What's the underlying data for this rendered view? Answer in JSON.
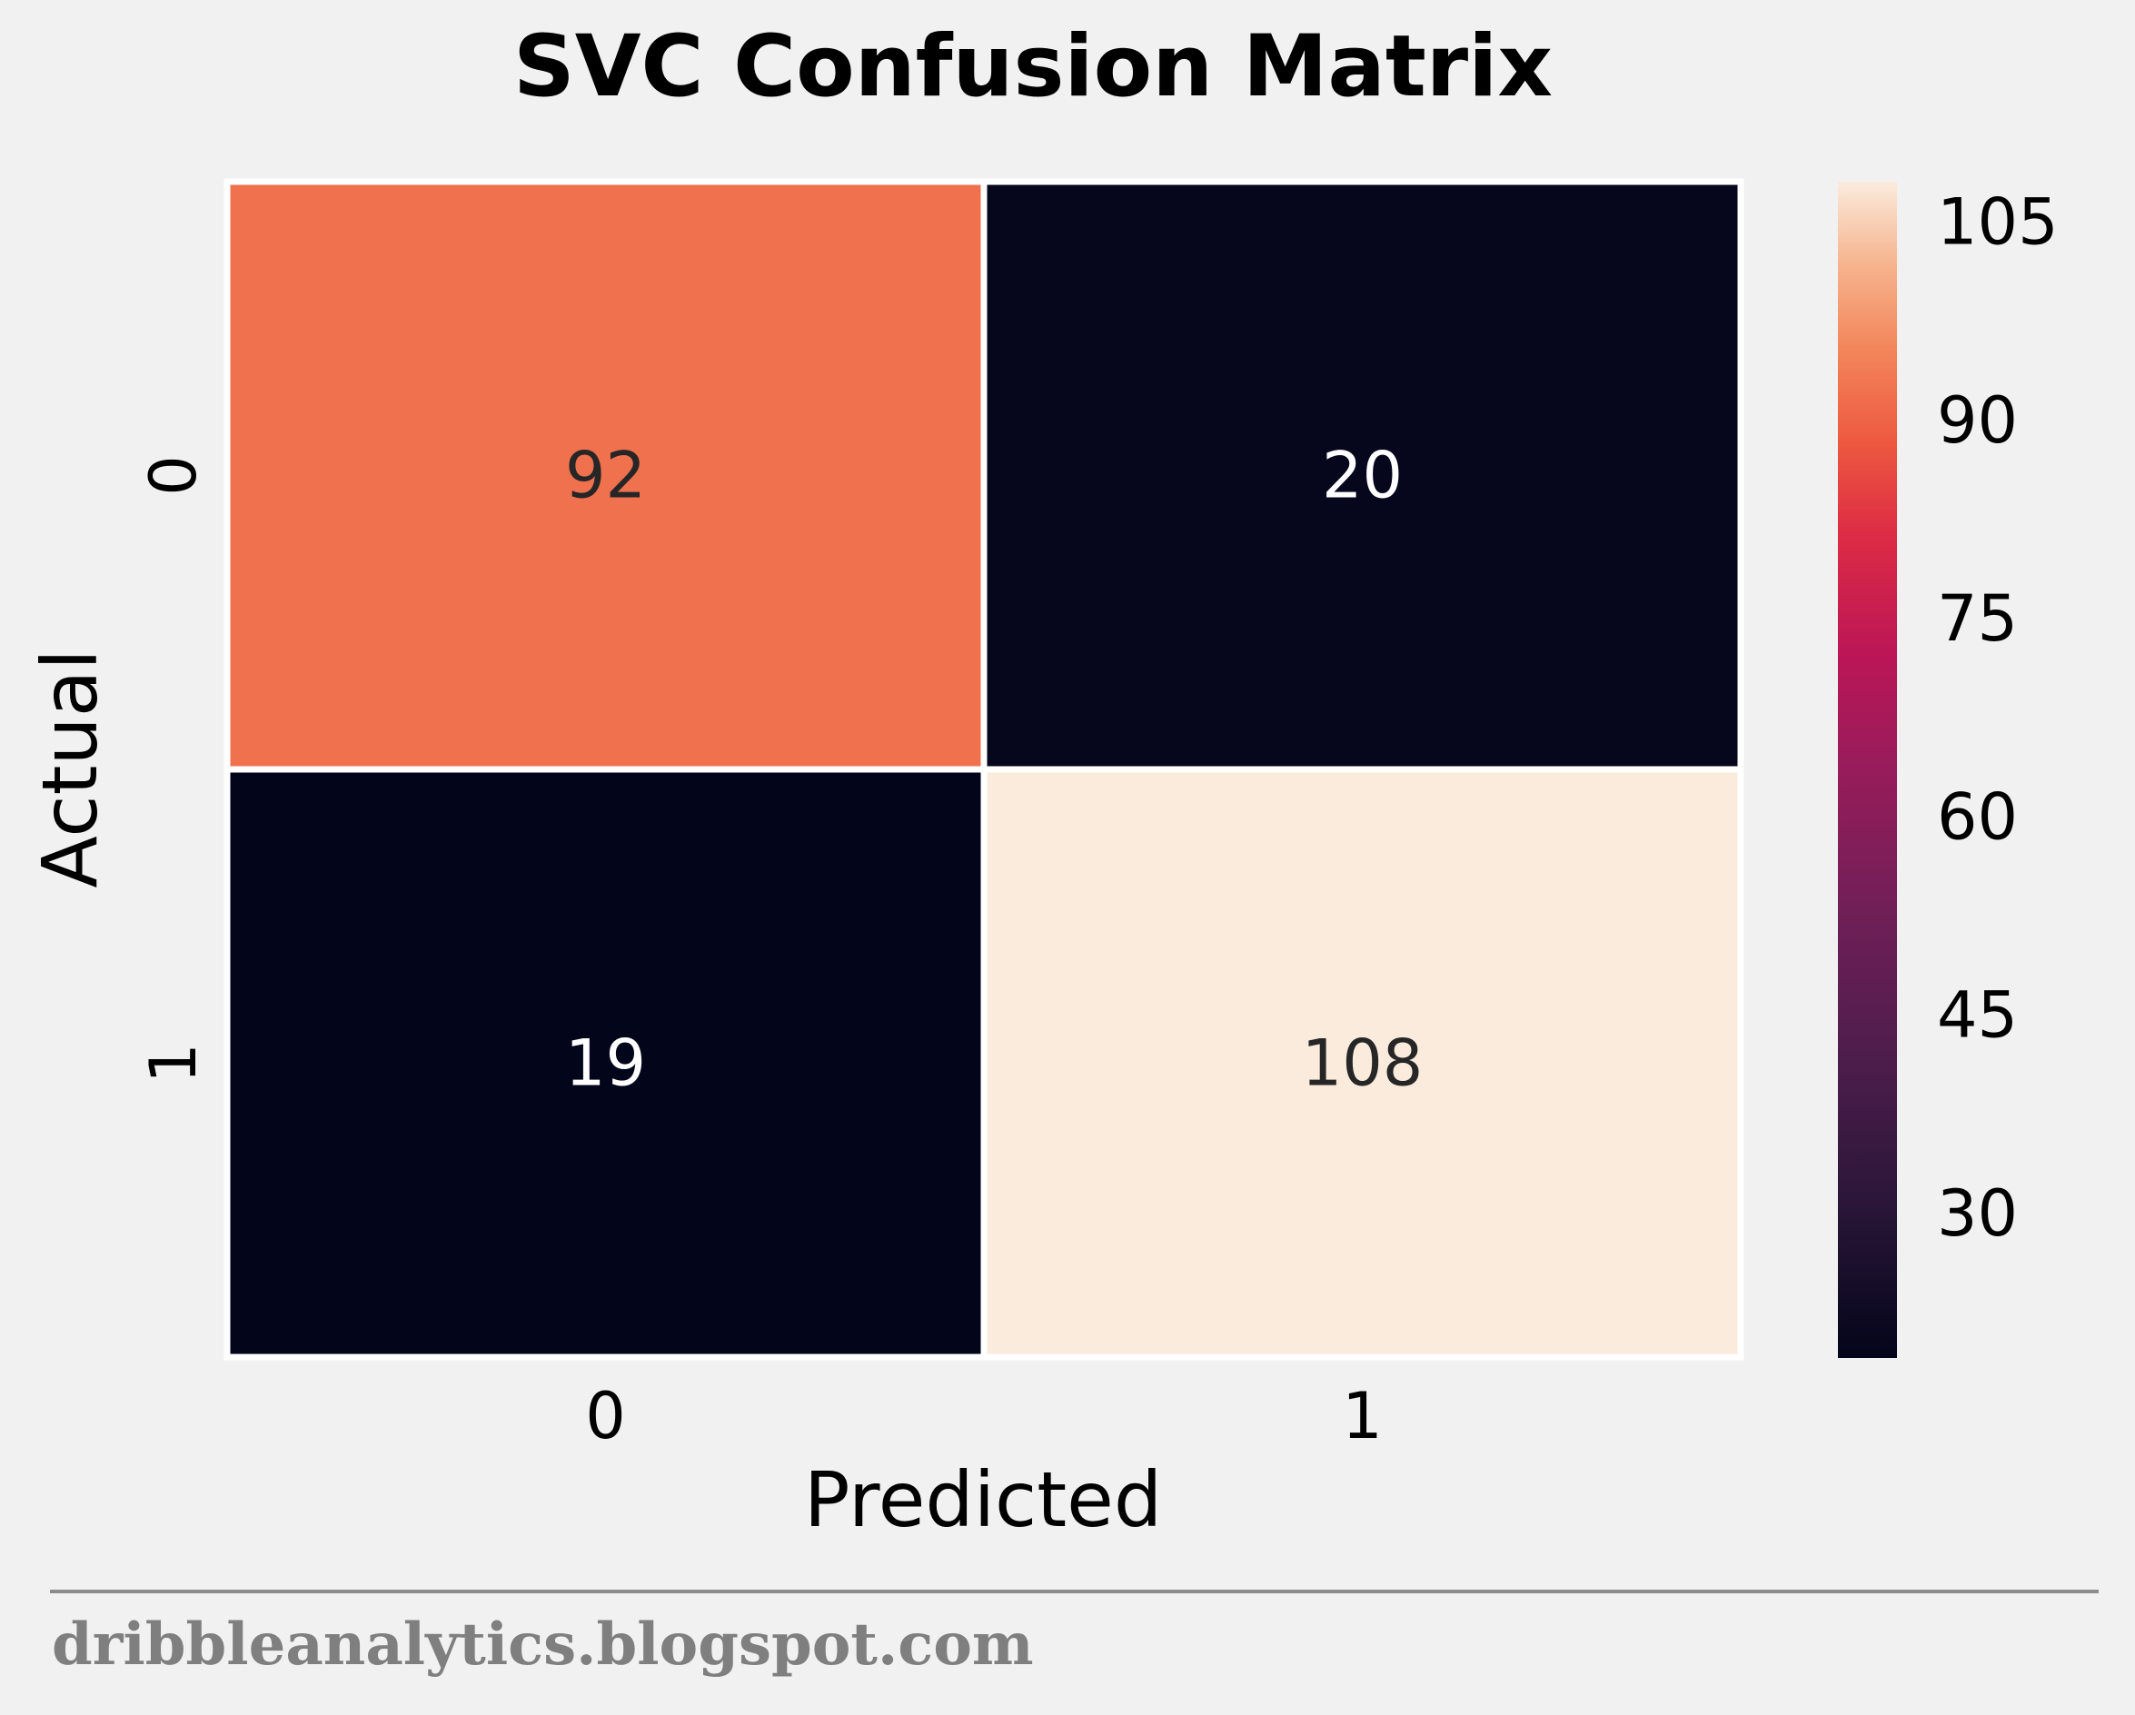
{
  "chart_data": {
    "type": "heatmap",
    "title": "SVC Confusion Matrix",
    "xlabel": "Predicted",
    "ylabel": "Actual",
    "x_categories": [
      "0",
      "1"
    ],
    "y_categories": [
      "0",
      "1"
    ],
    "matrix": [
      [
        92,
        20
      ],
      [
        19,
        108
      ]
    ],
    "colormap": "rocket",
    "colorbar": {
      "range": [
        19,
        108
      ],
      "ticks": [
        30,
        45,
        60,
        75,
        90,
        105
      ]
    },
    "grid": false
  },
  "footer": {
    "text": "dribbleanalytics.blogspot.com"
  },
  "colors": {
    "background": "#f1f1f1",
    "cell_border": "#ffffff",
    "footer_text": "#7f7f7f",
    "footer_rule": "#8c8c8c"
  }
}
